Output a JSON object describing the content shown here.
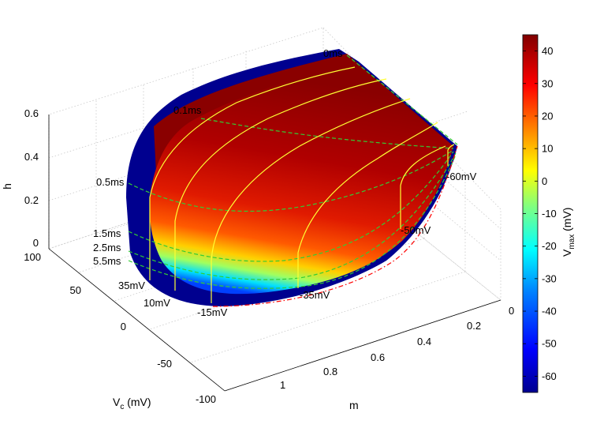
{
  "chart_data": {
    "type": "surface3d",
    "title": "",
    "axes": {
      "h": {
        "label": "h",
        "ticks": [
          "0",
          "0.2",
          "0.4",
          "0.6"
        ],
        "range": [
          0,
          0.7
        ]
      },
      "vc": {
        "label_main": "V",
        "label_sub": "c",
        "label_unit": " (mV)",
        "ticks": [
          "100",
          "50",
          "0",
          "-50",
          "-100"
        ],
        "range": [
          -100,
          100
        ]
      },
      "m": {
        "label": "m",
        "ticks": [
          "0",
          "0.2",
          "0.4",
          "0.6",
          "0.8",
          "1"
        ],
        "range": [
          0,
          1
        ]
      }
    },
    "grid": true,
    "colorbar": {
      "label_main": "V",
      "label_sub": "max",
      "label_unit": " (mV)",
      "ticks": [
        "40",
        "30",
        "20",
        "10",
        "0",
        "-10",
        "-20",
        "-30",
        "-40",
        "-50",
        "-60"
      ],
      "range": [
        -65,
        45
      ],
      "colormap": [
        "#00008f",
        "#0000ff",
        "#0080ff",
        "#00ffff",
        "#80ff80",
        "#ffff00",
        "#ff8000",
        "#ff0000",
        "#800000"
      ]
    },
    "time_contours": [
      "0ms",
      "0.1ms",
      "0.5ms",
      "1.5ms",
      "2.5ms",
      "5.5ms"
    ],
    "voltage_contours": [
      "-60mV",
      "-50mV",
      "-35mV",
      "-15mV",
      "10mV",
      "35mV"
    ],
    "line_styles": {
      "time": "green dashed",
      "voltage": "yellow solid",
      "boundary": "red dash-dot"
    },
    "colors": {
      "surface_high": "#8a0000",
      "surface_mid": "#e02000",
      "surface_low": "#00008f",
      "time_line": "#33cc33",
      "voltage_line": "#ffff33",
      "boundary": "#ff0000"
    }
  }
}
